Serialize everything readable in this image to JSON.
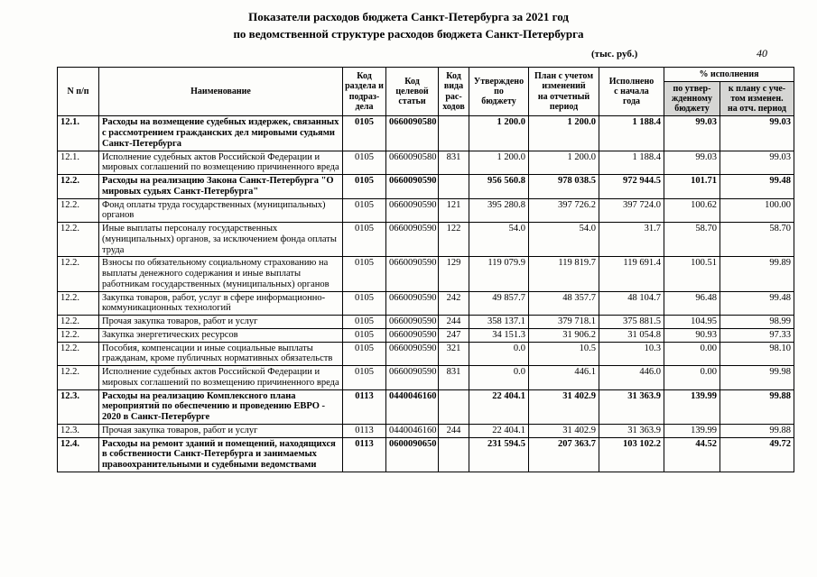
{
  "page": {
    "title_line1": "Показатели расходов бюджета Санкт-Петербурга за 2021 год",
    "title_line2": "по ведомственной структуре расходов бюджета Санкт-Петербурга",
    "units_note": "(тыс. руб.)",
    "page_number": "40"
  },
  "table": {
    "headers": {
      "num": "N п/п",
      "name": "Наименование",
      "section_code": "Код\nраздела и\nподраз-\nдела",
      "target_code": "Код\nцелевой\nстатьи",
      "expense_code": "Код\nвида\nрас-\nходов",
      "approved": "Утверждено\nпо\nбюджету",
      "plan": "План с учетом\nизменений\nна отчетный\nпериод",
      "executed": "Исполнено\nс начала\nгода",
      "pct_group": "% исполнения",
      "pct_budget": "по утвер-\nжденному\nбюджету",
      "pct_plan": "к плану с уче-\nтом изменен.\nна отч. период"
    },
    "rows": [
      {
        "num": "12.1.",
        "name": "Расходы на возмещение судебных издержек, связанных с рассмотрением гражданских дел мировыми судьями Санкт-Петербурга",
        "section": "0105",
        "target": "0660090580",
        "vid": "",
        "approved": "1 200.0",
        "plan": "1 200.0",
        "executed": "1 188.4",
        "pct_budget": "99.03",
        "pct_plan": "99.03",
        "bold": true
      },
      {
        "num": "12.1.",
        "name": "Исполнение судебных актов Российской Федерации и мировых соглашений по возмещению причиненного вреда",
        "section": "0105",
        "target": "0660090580",
        "vid": "831",
        "approved": "1 200.0",
        "plan": "1 200.0",
        "executed": "1 188.4",
        "pct_budget": "99.03",
        "pct_plan": "99.03",
        "bold": false
      },
      {
        "num": "12.2.",
        "name": "Расходы на реализацию Закона Санкт-Петербурга \"О мировых судьях Санкт-Петербурга\"",
        "section": "0105",
        "target": "0660090590",
        "vid": "",
        "approved": "956 560.8",
        "plan": "978 038.5",
        "executed": "972 944.5",
        "pct_budget": "101.71",
        "pct_plan": "99.48",
        "bold": true
      },
      {
        "num": "12.2.",
        "name": "Фонд оплаты труда государственных (муниципальных) органов",
        "section": "0105",
        "target": "0660090590",
        "vid": "121",
        "approved": "395 280.8",
        "plan": "397 726.2",
        "executed": "397 724.0",
        "pct_budget": "100.62",
        "pct_plan": "100.00",
        "bold": false
      },
      {
        "num": "12.2.",
        "name": "Иные выплаты персоналу государственных (муниципальных) органов, за исключением фонда оплаты труда",
        "section": "0105",
        "target": "0660090590",
        "vid": "122",
        "approved": "54.0",
        "plan": "54.0",
        "executed": "31.7",
        "pct_budget": "58.70",
        "pct_plan": "58.70",
        "bold": false
      },
      {
        "num": "12.2.",
        "name": "Взносы по обязательному социальному страхованию на выплаты денежного содержания и иные выплаты работникам государственных (муниципальных) органов",
        "section": "0105",
        "target": "0660090590",
        "vid": "129",
        "approved": "119 079.9",
        "plan": "119 819.7",
        "executed": "119 691.4",
        "pct_budget": "100.51",
        "pct_plan": "99.89",
        "bold": false
      },
      {
        "num": "12.2.",
        "name": "Закупка товаров, работ, услуг в сфере информационно-коммуникационных технологий",
        "section": "0105",
        "target": "0660090590",
        "vid": "242",
        "approved": "49 857.7",
        "plan": "48 357.7",
        "executed": "48 104.7",
        "pct_budget": "96.48",
        "pct_plan": "99.48",
        "bold": false
      },
      {
        "num": "12.2.",
        "name": "Прочая закупка товаров, работ и услуг",
        "section": "0105",
        "target": "0660090590",
        "vid": "244",
        "approved": "358 137.1",
        "plan": "379 718.1",
        "executed": "375 881.5",
        "pct_budget": "104.95",
        "pct_plan": "98.99",
        "bold": false
      },
      {
        "num": "12.2.",
        "name": "Закупка энергетических ресурсов",
        "section": "0105",
        "target": "0660090590",
        "vid": "247",
        "approved": "34 151.3",
        "plan": "31 906.2",
        "executed": "31 054.8",
        "pct_budget": "90.93",
        "pct_plan": "97.33",
        "bold": false
      },
      {
        "num": "12.2.",
        "name": "Пособия, компенсации и иные социальные выплаты гражданам, кроме публичных нормативных обязательств",
        "section": "0105",
        "target": "0660090590",
        "vid": "321",
        "approved": "0.0",
        "plan": "10.5",
        "executed": "10.3",
        "pct_budget": "0.00",
        "pct_plan": "98.10",
        "bold": false
      },
      {
        "num": "12.2.",
        "name": "Исполнение судебных актов Российской Федерации и мировых соглашений по возмещению причиненного вреда",
        "section": "0105",
        "target": "0660090590",
        "vid": "831",
        "approved": "0.0",
        "plan": "446.1",
        "executed": "446.0",
        "pct_budget": "0.00",
        "pct_plan": "99.98",
        "bold": false
      },
      {
        "num": "12.3.",
        "name": "Расходы на реализацию Комплексного плана мероприятий по обеспечению и проведению ЕВРО - 2020 в Санкт-Петербурге",
        "section": "0113",
        "target": "0440046160",
        "vid": "",
        "approved": "22 404.1",
        "plan": "31 402.9",
        "executed": "31 363.9",
        "pct_budget": "139.99",
        "pct_plan": "99.88",
        "bold": true
      },
      {
        "num": "12.3.",
        "name": "Прочая закупка товаров, работ и услуг",
        "section": "0113",
        "target": "0440046160",
        "vid": "244",
        "approved": "22 404.1",
        "plan": "31 402.9",
        "executed": "31 363.9",
        "pct_budget": "139.99",
        "pct_plan": "99.88",
        "bold": false
      },
      {
        "num": "12.4.",
        "name": "Расходы на ремонт зданий и помещений, находящихся в собственности Санкт-Петербурга и занимаемых правоохранительными и судебными ведомствами",
        "section": "0113",
        "target": "0600090650",
        "vid": "",
        "approved": "231 594.5",
        "plan": "207 363.7",
        "executed": "103 102.2",
        "pct_budget": "44.52",
        "pct_plan": "49.72",
        "bold": true
      }
    ]
  }
}
